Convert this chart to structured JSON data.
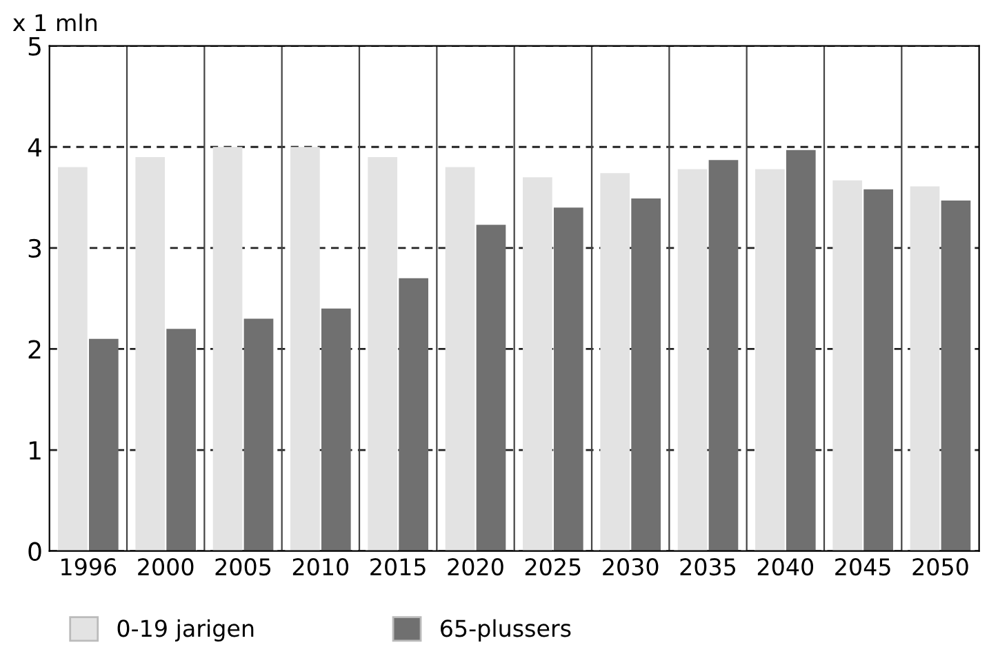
{
  "chart_data": {
    "type": "bar",
    "ylabel": "x 1 mln",
    "categories": [
      "1996",
      "2000",
      "2005",
      "2010",
      "2015",
      "2020",
      "2025",
      "2030",
      "2035",
      "2040",
      "2045",
      "2050"
    ],
    "series": [
      {
        "name": "0-19 jarigen",
        "color": "#e3e3e3",
        "values": [
          3.8,
          3.9,
          4.0,
          4.0,
          3.9,
          3.8,
          3.7,
          3.74,
          3.78,
          3.78,
          3.67,
          3.61
        ]
      },
      {
        "name": "65-plussers",
        "color": "#707070",
        "values": [
          2.1,
          2.2,
          2.3,
          2.4,
          2.7,
          3.23,
          3.4,
          3.49,
          3.87,
          3.97,
          3.58,
          3.47
        ]
      }
    ],
    "ylim": [
      0,
      5
    ],
    "yticks": [
      0,
      1,
      2,
      3,
      4,
      5
    ],
    "grid": true,
    "legend": "bottom"
  }
}
